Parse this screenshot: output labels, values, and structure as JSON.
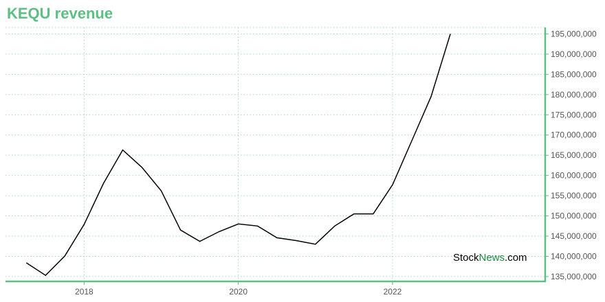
{
  "header": {
    "title": "KEQU revenue"
  },
  "watermark": {
    "part1": "Stock",
    "part2": "News",
    "part3": ".com"
  },
  "chart_data": {
    "type": "line",
    "title": "KEQU revenue",
    "xlabel": "",
    "ylabel": "",
    "x_ticks": [
      2018,
      2020,
      2022
    ],
    "y_ticks": [
      135000000,
      140000000,
      145000000,
      150000000,
      155000000,
      160000000,
      165000000,
      170000000,
      175000000,
      180000000,
      185000000,
      190000000,
      195000000
    ],
    "y_tick_labels": [
      "135,000,000",
      "140,000,000",
      "145,000,000",
      "150,000,000",
      "155,000,000",
      "160,000,000",
      "165,000,000",
      "170,000,000",
      "175,000,000",
      "180,000,000",
      "185,000,000",
      "190,000,000",
      "195,000,000"
    ],
    "xlim": [
      2016.98,
      2023.98
    ],
    "ylim": [
      133800000,
      196600000
    ],
    "grid": true,
    "y_axis_side": "right",
    "series": [
      {
        "color": "#000000",
        "x": [
          2017.25,
          2017.5,
          2017.75,
          2018.0,
          2018.25,
          2018.5,
          2018.75,
          2019.0,
          2019.25,
          2019.5,
          2019.75,
          2020.0,
          2020.25,
          2020.5,
          2020.75,
          2021.0,
          2021.25,
          2021.5,
          2021.75,
          2022.0,
          2022.25,
          2022.5,
          2022.75
        ],
        "values": [
          138400000,
          135300000,
          140100000,
          147900000,
          158000000,
          166300000,
          162000000,
          156200000,
          146500000,
          143700000,
          146100000,
          148000000,
          147500000,
          144600000,
          143900000,
          143000000,
          147500000,
          150500000,
          150500000,
          157700000,
          168600000,
          179500000,
          195000000
        ]
      }
    ]
  }
}
